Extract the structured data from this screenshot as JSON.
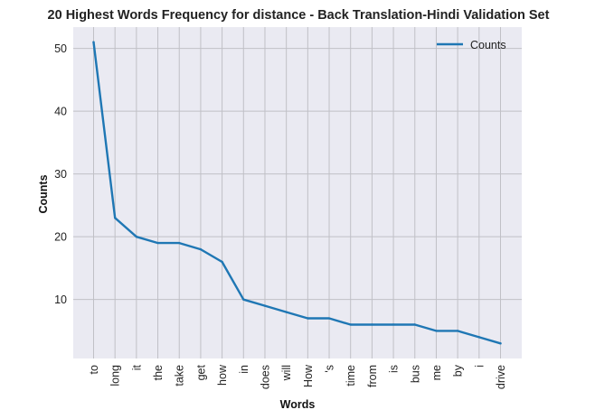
{
  "chart_data": {
    "type": "line",
    "title": "20 Highest Words Frequency for distance - Back Translation-Hindi Validation Set",
    "xlabel": "Words",
    "ylabel": "Counts",
    "categories": [
      "to",
      "long",
      "it",
      "the",
      "take",
      "get",
      "how",
      "in",
      "does",
      "will",
      "How",
      "'s",
      "time",
      "from",
      "is",
      "bus",
      "me",
      "by",
      "i",
      "drive"
    ],
    "series": [
      {
        "name": "Counts",
        "values": [
          51,
          23,
          20,
          19,
          19,
          18,
          16,
          10,
          9,
          8,
          7,
          7,
          6,
          6,
          6,
          6,
          5,
          5,
          4,
          3
        ],
        "color": "#1f77b4"
      }
    ],
    "yticks": [
      "10",
      "20",
      "30",
      "40",
      "50"
    ],
    "ylim": [
      0.6,
      53.4
    ],
    "grid": true,
    "legend": "top-right",
    "colors": {
      "background": "#eaeaf2",
      "grid": "#c0c0c6"
    }
  }
}
